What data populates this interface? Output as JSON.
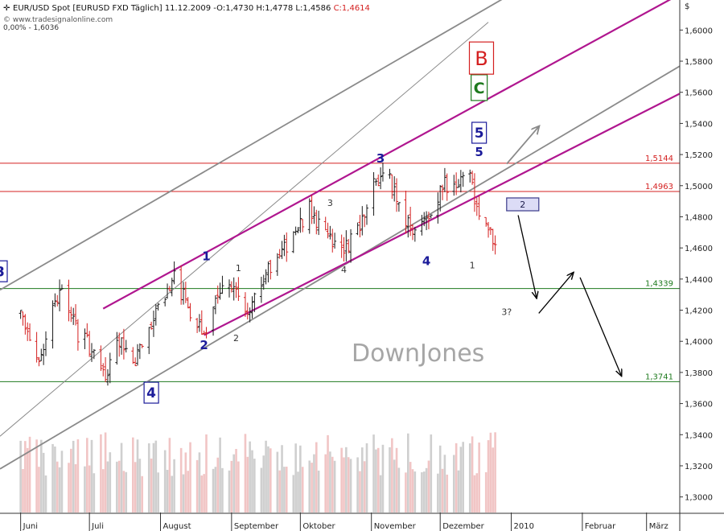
{
  "header": {
    "title": "EUR/USD Spot [EURUSD FXD  Täglich] 11.12.2009 -",
    "ohl": "O:1,4730 H:1,4778 L:1,4586",
    "close": "C:1,4614",
    "source": "© www.tradesignalonline.com",
    "zoom_label": "0,00% - 1,6036",
    "currency_symbol": "$"
  },
  "colors": {
    "bull_bar": "#1a1a1a",
    "bear_bar": "#d42020",
    "channel": "#b0168f",
    "gray_line": "#8a8a8a",
    "hline_red": "#d42020",
    "hline_green": "#1e7a1e",
    "label_red": "#d42020",
    "label_green": "#1e7a1e",
    "volume": "#f1c5c5"
  },
  "watermark": "DownJones",
  "chart_data": {
    "type": "ohlc",
    "x_labels": [
      "Juni",
      "Juli",
      "August",
      "September",
      "Oktober",
      "November",
      "Dezember",
      "2010",
      "Februar",
      "März"
    ],
    "x_months": [
      "2009-06",
      "2009-07",
      "2009-08",
      "2009-09",
      "2009-10",
      "2009-11",
      "2009-12",
      "2010-01",
      "2010-02",
      "2010-03"
    ],
    "ylim": [
      1.29,
      1.61
    ],
    "yticks": [
      "1,3000",
      "1,3200",
      "1,3400",
      "1,3600",
      "1,3800",
      "1,4000",
      "1,4200",
      "1,4400",
      "1,4600",
      "1,4800",
      "1,5000",
      "1,5200",
      "1,5400",
      "1,5600",
      "1,5800",
      "1,6000"
    ],
    "horizontal_levels": [
      {
        "label": "1,5144",
        "value": 1.5144,
        "color": "red"
      },
      {
        "label": "1,4963",
        "value": 1.4963,
        "color": "red"
      },
      {
        "label": "1,4339",
        "value": 1.4339,
        "color": "green"
      },
      {
        "label": "1,3741",
        "value": 1.3741,
        "color": "green"
      }
    ],
    "price_path": [
      [
        "2009-06-01",
        1.418
      ],
      [
        "2009-06-05",
        1.4
      ],
      [
        "2009-06-10",
        1.39
      ],
      [
        "2009-06-15",
        1.425
      ],
      [
        "2009-06-19",
        1.43
      ],
      [
        "2009-06-26",
        1.405
      ],
      [
        "2009-07-02",
        1.395
      ],
      [
        "2009-07-08",
        1.378
      ],
      [
        "2009-07-13",
        1.402
      ],
      [
        "2009-07-20",
        1.385
      ],
      [
        "2009-07-27",
        1.41
      ],
      [
        "2009-08-03",
        1.425
      ],
      [
        "2009-08-07",
        1.442
      ],
      [
        "2009-08-12",
        1.425
      ],
      [
        "2009-08-17",
        1.408
      ],
      [
        "2009-08-21",
        1.41
      ],
      [
        "2009-08-26",
        1.43
      ],
      [
        "2009-09-01",
        1.438
      ],
      [
        "2009-09-08",
        1.42
      ],
      [
        "2009-09-14",
        1.44
      ],
      [
        "2009-09-22",
        1.455
      ],
      [
        "2009-09-28",
        1.467
      ],
      [
        "2009-10-05",
        1.485
      ],
      [
        "2009-10-12",
        1.47
      ],
      [
        "2009-10-19",
        1.458
      ],
      [
        "2009-10-26",
        1.47
      ],
      [
        "2009-11-02",
        1.5
      ],
      [
        "2009-11-08",
        1.507
      ],
      [
        "2009-11-13",
        1.49
      ],
      [
        "2009-11-18",
        1.47
      ],
      [
        "2009-11-23",
        1.475
      ],
      [
        "2009-11-30",
        1.493
      ],
      [
        "2009-12-03",
        1.502
      ],
      [
        "2009-12-08",
        1.498
      ],
      [
        "2009-12-13",
        1.512
      ],
      [
        "2009-12-17",
        1.485
      ],
      [
        "2009-12-21",
        1.476
      ],
      [
        "2009-12-25",
        1.461
      ]
    ],
    "wave_labels_small": [
      {
        "text": "1",
        "date": "2009-09-04",
        "y": 1.445
      },
      {
        "text": "2",
        "date": "2009-09-03",
        "y": 1.4
      },
      {
        "text": "3",
        "date": "2009-10-14",
        "y": 1.487
      },
      {
        "text": "4",
        "date": "2009-10-20",
        "y": 1.444
      },
      {
        "text": "1",
        "date": "2009-12-15",
        "y": 1.447
      },
      {
        "text": "3?",
        "date": "2009-12-30",
        "y": 1.417
      }
    ],
    "wave_labels_big": [
      {
        "text": "1",
        "date": "2009-08-21",
        "y": 1.452
      },
      {
        "text": "2",
        "date": "2009-08-20",
        "y": 1.395
      },
      {
        "text": "3",
        "date": "2009-11-05",
        "y": 1.515
      },
      {
        "text": "4",
        "date": "2009-11-25",
        "y": 1.449
      },
      {
        "text": "5",
        "date": "2009-12-18",
        "y": 1.519
      }
    ],
    "boxed_labels": [
      {
        "text": "3",
        "date": "2009-05-23",
        "y": 1.445,
        "style": "blue"
      },
      {
        "text": "4",
        "date": "2009-07-28",
        "y": 1.367,
        "style": "blue"
      },
      {
        "text": "5",
        "date": "2009-12-18",
        "y": 1.534,
        "style": "blue"
      },
      {
        "text": "C",
        "date": "2009-12-18",
        "y": 1.563,
        "style": "green"
      },
      {
        "text": "B",
        "date": "2009-12-19",
        "y": 1.582,
        "style": "red"
      },
      {
        "text": "2",
        "date": "2010-01-06",
        "y": 1.488,
        "style": "panel"
      }
    ],
    "channel_lines": [
      {
        "from": [
          "2009-07-07",
          1.421
        ],
        "to": [
          "2010-03-18",
          1.625
        ]
      },
      {
        "from": [
          "2009-08-20",
          1.404
        ],
        "to": [
          "2010-03-18",
          1.561
        ]
      }
    ],
    "gray_lines": [
      {
        "from": [
          "2009-05-23",
          1.433
        ],
        "to": [
          "2010-01-09",
          1.63
        ]
      },
      {
        "from": [
          "2009-05-23",
          1.318
        ],
        "to": [
          "2010-03-18",
          1.579
        ]
      },
      {
        "from": [
          "2009-05-23",
          1.339
        ],
        "to": [
          "2009-12-22",
          1.605
        ]
      }
    ],
    "forecast_arrows": [
      {
        "from": [
          "2010-01-04",
          1.481
        ],
        "to": [
          "2010-01-12",
          1.428
        ]
      },
      {
        "from": [
          "2010-01-13",
          1.418
        ],
        "to": [
          "2010-01-28",
          1.444
        ]
      },
      {
        "from": [
          "2010-01-31",
          1.441
        ],
        "to": [
          "2010-02-18",
          1.378
        ]
      }
    ],
    "gray_arrow": {
      "from": [
        "2009-12-30",
        1.514
      ],
      "to": [
        "2010-01-13",
        1.538
      ]
    }
  }
}
